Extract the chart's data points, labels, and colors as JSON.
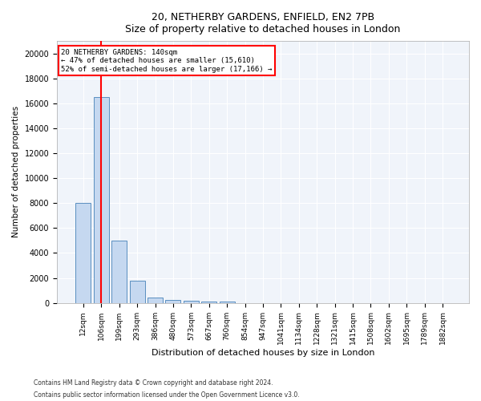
{
  "title1": "20, NETHERBY GARDENS, ENFIELD, EN2 7PB",
  "title2": "Size of property relative to detached houses in London",
  "xlabel": "Distribution of detached houses by size in London",
  "ylabel": "Number of detached properties",
  "categories": [
    "12sqm",
    "106sqm",
    "199sqm",
    "293sqm",
    "386sqm",
    "480sqm",
    "573sqm",
    "667sqm",
    "760sqm",
    "854sqm",
    "947sqm",
    "1041sqm",
    "1134sqm",
    "1228sqm",
    "1321sqm",
    "1415sqm",
    "1508sqm",
    "1602sqm",
    "1695sqm",
    "1789sqm",
    "1882sqm"
  ],
  "values": [
    8000,
    16500,
    5000,
    1800,
    400,
    250,
    150,
    100,
    75,
    0,
    0,
    0,
    0,
    0,
    0,
    0,
    0,
    0,
    0,
    0,
    0
  ],
  "bar_color": "#c5d8f0",
  "bar_edge_color": "#5a8fc0",
  "vline_x": 1,
  "vline_color": "red",
  "annotation_title": "20 NETHERBY GARDENS: 140sqm",
  "annotation_line1": "← 47% of detached houses are smaller (15,610)",
  "annotation_line2": "52% of semi-detached houses are larger (17,166) →",
  "box_color": "red",
  "ylim": [
    0,
    21000
  ],
  "yticks": [
    0,
    2000,
    4000,
    6000,
    8000,
    10000,
    12000,
    14000,
    16000,
    18000,
    20000
  ],
  "footer1": "Contains HM Land Registry data © Crown copyright and database right 2024.",
  "footer2": "Contains public sector information licensed under the Open Government Licence v3.0.",
  "background_color": "#f0f4fa"
}
